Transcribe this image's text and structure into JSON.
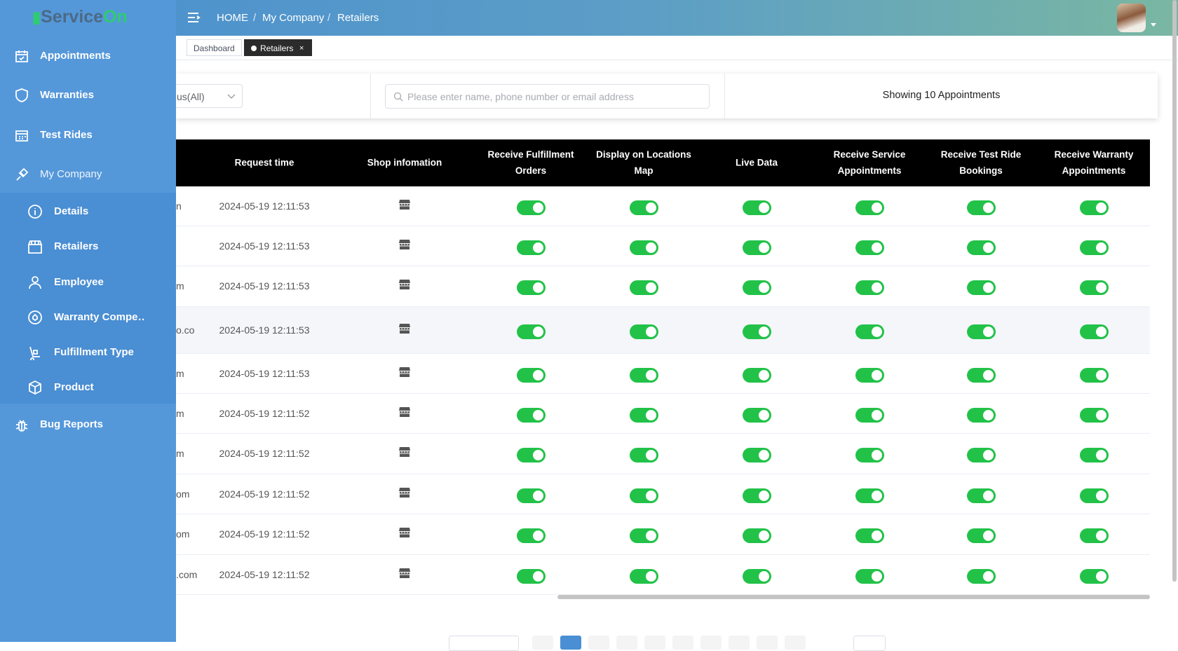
{
  "sidebar": {
    "brand_main": "Service",
    "brand_accent": "On",
    "items": [
      "Appointments",
      "Warranties",
      "Test Rides",
      "My Company"
    ],
    "sub_items": [
      "Details",
      "Retailers",
      "Employee",
      "Warranty Compe…",
      "Fulfillment Type",
      "Product"
    ],
    "bottom_item": "Bug Reports"
  },
  "header": {
    "breadcrumb": [
      "HOME",
      "My Company",
      "Retailers"
    ],
    "breadcrumb_separator": "/"
  },
  "tabs": {
    "items": [
      "Dashboard",
      "Retailers"
    ],
    "close": "×"
  },
  "filters": {
    "status": "us(All)",
    "search_placeholder": "Please enter name, phone number or email address",
    "count_text": "Showing 10 Appointments"
  },
  "table": {
    "columns": [
      "Request time",
      "Shop infomation",
      "Receive Fulfillment Orders",
      "Display on Locations Map",
      "Live Data",
      "Receive Service Appointments",
      "Receive Test Ride Bookings",
      "Receive Warranty Appointments"
    ],
    "rows": [
      {
        "email": "n",
        "request_time": "2024-05-19 12:11:53",
        "toggles": [
          true,
          true,
          true,
          true,
          true,
          true
        ]
      },
      {
        "request_time": "2024-05-19 12:11:53",
        "toggles": [
          true,
          true,
          true,
          true,
          true,
          true
        ]
      },
      {
        "email": "m",
        "request_time": "2024-05-19 12:11:53",
        "toggles": [
          true,
          true,
          true,
          true,
          true,
          true
        ]
      },
      {
        "email": "o.co",
        "request_time": "2024-05-19 12:11:53",
        "toggles": [
          true,
          true,
          true,
          true,
          true,
          true
        ]
      },
      {
        "email": "m",
        "request_time": "2024-05-19 12:11:53",
        "toggles": [
          true,
          true,
          true,
          true,
          true,
          true
        ]
      },
      {
        "email": "m",
        "request_time": "2024-05-19 12:11:52",
        "toggles": [
          true,
          true,
          true,
          true,
          true,
          true
        ]
      },
      {
        "email": "m",
        "request_time": "2024-05-19 12:11:52",
        "toggles": [
          true,
          true,
          true,
          true,
          true,
          true
        ]
      },
      {
        "email": "om",
        "request_time": "2024-05-19 12:11:52",
        "toggles": [
          true,
          true,
          true,
          true,
          true,
          true
        ]
      },
      {
        "email": "om",
        "request_time": "2024-05-19 12:11:52",
        "toggles": [
          true,
          true,
          true,
          true,
          true,
          true
        ]
      },
      {
        "email": ".com",
        "request_time": "2024-05-19 12:11:52",
        "toggles": [
          true,
          true,
          true,
          true,
          true,
          true
        ]
      }
    ]
  }
}
